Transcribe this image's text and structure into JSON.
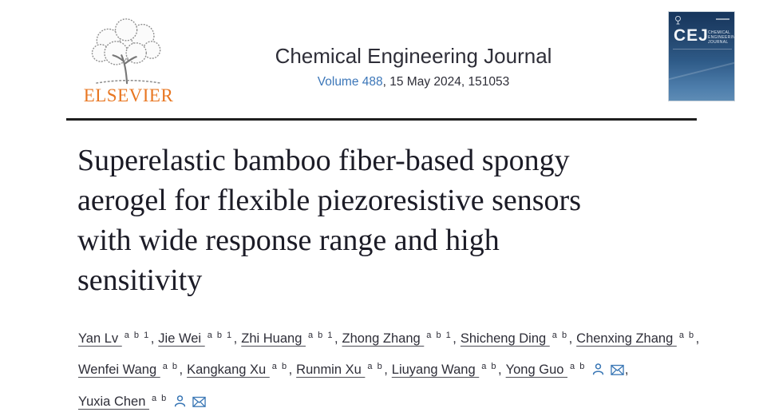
{
  "header": {
    "publisher": {
      "name": "ELSEVIER",
      "logo_color": "#e87722"
    },
    "journal_title": "Chemical Engineering Journal",
    "volume_link": "Volume 488",
    "issue_info": ", 15 May 2024, 151053",
    "link_color": "#3b76b8",
    "cover": {
      "abbrev": "CEJ",
      "subtitle": "CHEMICAL ENGINEERING JOURNAL"
    }
  },
  "article": {
    "title": "Superelastic bamboo fiber-based spongy aerogel for flexible piezoresistive sensors with wide response range and high sensitivity",
    "title_lines": [
      "Superelastic bamboo fiber-based spongy",
      "aerogel for flexible piezoresistive sensors",
      "with wide response range and high",
      "sensitivity"
    ]
  },
  "authors": {
    "icon_color": "#3a77b5",
    "separator": ",",
    "list": [
      {
        "name": "Yan Lv",
        "sup": "a b 1",
        "icons": []
      },
      {
        "name": "Jie Wei",
        "sup": "a b 1",
        "icons": []
      },
      {
        "name": "Zhi Huang",
        "sup": "a b 1",
        "icons": []
      },
      {
        "name": "Zhong Zhang",
        "sup": "a b 1",
        "icons": []
      },
      {
        "name": "Shicheng Ding",
        "sup": "a b",
        "icons": []
      },
      {
        "name": "Chenxing Zhang",
        "sup": "a b",
        "icons": []
      },
      {
        "name": "Wenfei Wang",
        "sup": "a b",
        "icons": []
      },
      {
        "name": "Kangkang Xu",
        "sup": "a b",
        "icons": []
      },
      {
        "name": "Runmin Xu",
        "sup": "a b",
        "icons": []
      },
      {
        "name": "Liuyang Wang",
        "sup": "a b",
        "icons": []
      },
      {
        "name": "Yong Guo",
        "sup": "a b",
        "icons": [
          "person",
          "email"
        ]
      },
      {
        "name": "Yuxia Chen",
        "sup": "a b",
        "icons": [
          "person",
          "email"
        ]
      }
    ]
  }
}
